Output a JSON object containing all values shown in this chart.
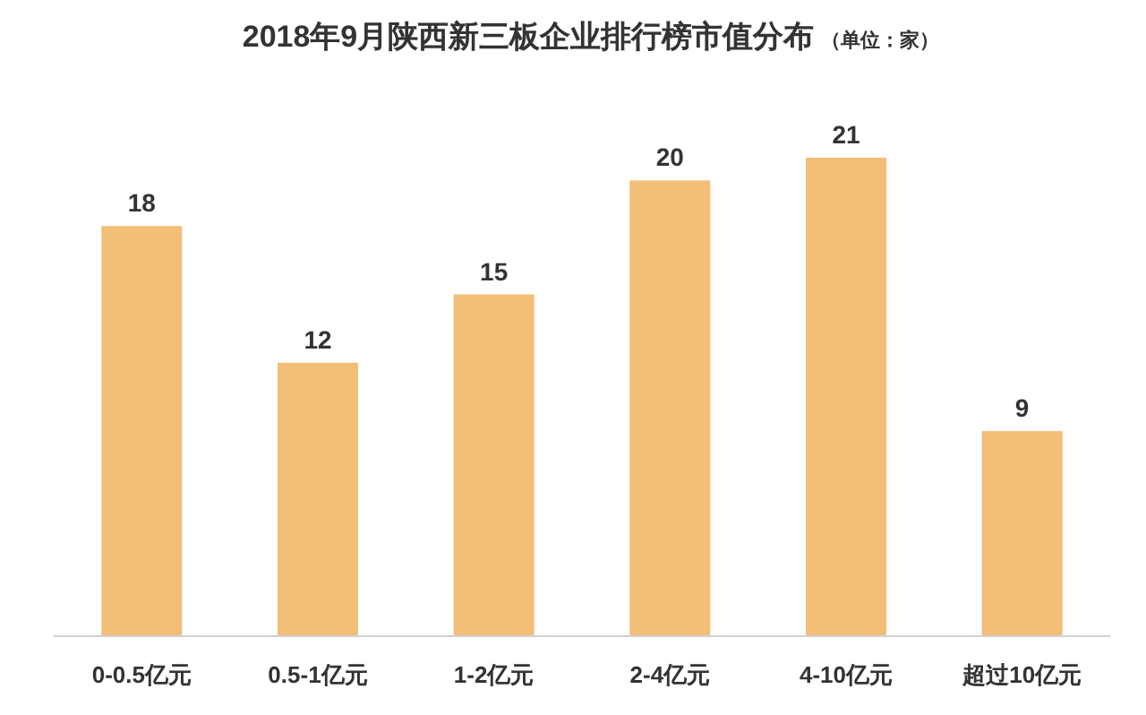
{
  "chart_data": {
    "type": "bar",
    "title": "2018年9月陕西新三板企业排行榜市值分布",
    "subtitle": "（单位：家）",
    "categories": [
      "0-0.5亿元",
      "0.5-1亿元",
      "1-2亿元",
      "2-4亿元",
      "4-10亿元",
      "超过10亿元"
    ],
    "values": [
      18,
      12,
      15,
      20,
      21,
      9
    ],
    "color": "#f2be78",
    "data_labels": true
  }
}
